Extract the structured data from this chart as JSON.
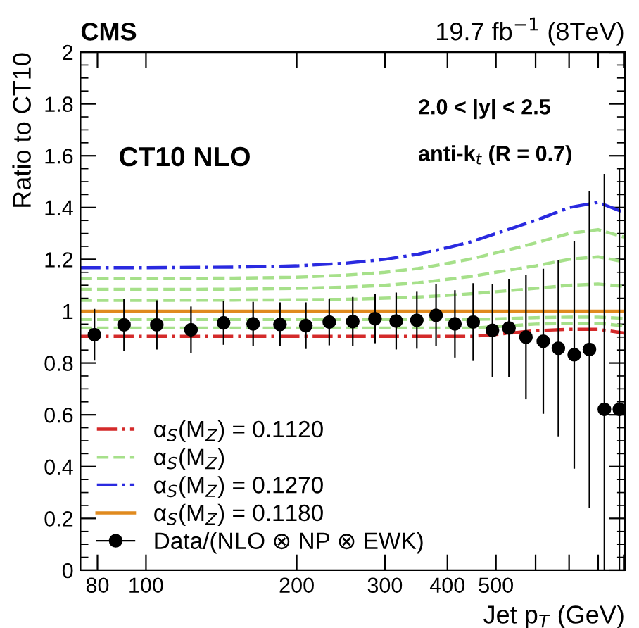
{
  "chart_data": {
    "type": "line",
    "title": "CMS",
    "subtitle": "19.7 fb$^{−1}$ (8TeV)",
    "xlabel": "Jet p$_{T}$ (GeV)",
    "ylabel": "Ratio to CT10",
    "annotations": [
      "CT10 NLO",
      "2.0 < |y| < 2.5",
      "anti-k$_{t}$ (R = 0.7)"
    ],
    "log": "x",
    "xlim": [
      74,
      905
    ],
    "ylim": [
      0,
      2
    ],
    "xticks": [
      80,
      100,
      200,
      300,
      400,
      500,
      {
        "value": 600,
        "label": null
      },
      {
        "value": 700,
        "label": null
      },
      {
        "value": 800,
        "label": null
      },
      {
        "value": 900,
        "label": null
      }
    ],
    "yticks": [
      0,
      0.2,
      0.4,
      0.6,
      0.8,
      1,
      1.2,
      1.4,
      1.6,
      1.8,
      2
    ],
    "grid": false,
    "legend": "bottom left",
    "series": [
      {
        "name": "α$_{S}$(M$_{Z}$) = 0.1120",
        "color": "#d42a2a",
        "line_style": "dashdot",
        "x": [
          74,
          100,
          150,
          200,
          250,
          300,
          350,
          400,
          450,
          500,
          600,
          700,
          800,
          905
        ],
        "values": [
          0.903,
          0.903,
          0.903,
          0.903,
          0.903,
          0.903,
          0.903,
          0.903,
          0.903,
          0.91,
          0.925,
          0.93,
          0.93,
          0.915
        ]
      },
      {
        "name": "α$_{S}$(M$_{Z}$)",
        "color": "#a6e08a",
        "line_style": "dashed",
        "x": [
          74,
          100,
          150,
          200,
          250,
          300,
          350,
          400,
          450,
          500,
          600,
          700,
          800,
          905
        ],
        "values": [
          1.042,
          1.042,
          1.043,
          1.044,
          1.046,
          1.05,
          1.055,
          1.061,
          1.068,
          1.075,
          1.088,
          1.1,
          1.105,
          1.095
        ]
      },
      {
        "color": "#a6e08a",
        "line_style": "dashed",
        "x": [
          74,
          100,
          150,
          200,
          250,
          300,
          350,
          400,
          450,
          500,
          600,
          700,
          800,
          905
        ],
        "values": [
          1.084,
          1.084,
          1.085,
          1.088,
          1.093,
          1.1,
          1.11,
          1.123,
          1.135,
          1.15,
          1.175,
          1.2,
          1.21,
          1.19
        ]
      },
      {
        "color": "#a6e08a",
        "line_style": "dashed",
        "x": [
          74,
          100,
          150,
          200,
          250,
          300,
          350,
          400,
          450,
          500,
          600,
          700,
          800,
          905
        ],
        "values": [
          1.126,
          1.126,
          1.128,
          1.131,
          1.139,
          1.15,
          1.165,
          1.184,
          1.203,
          1.225,
          1.263,
          1.3,
          1.315,
          1.285
        ]
      },
      {
        "color": "#a6e08a",
        "line_style": "dashed",
        "x": [
          74,
          100,
          150,
          200,
          250,
          300,
          350,
          400,
          450,
          500,
          600,
          700,
          800,
          905
        ],
        "values": [
          0.968,
          0.968,
          0.968,
          0.968,
          0.968,
          0.968,
          0.968,
          0.968,
          0.968,
          0.97,
          0.975,
          0.977,
          0.977,
          0.972
        ]
      },
      {
        "color": "#a6e08a",
        "line_style": "dashed",
        "x": [
          74,
          100,
          150,
          200,
          250,
          300,
          350,
          400,
          450,
          500,
          600,
          700,
          800,
          905
        ],
        "values": [
          0.935,
          0.935,
          0.935,
          0.935,
          0.935,
          0.935,
          0.935,
          0.935,
          0.935,
          0.94,
          0.95,
          0.953,
          0.953,
          0.943
        ]
      },
      {
        "name": "α$_{S}$(M$_{Z}$) = 0.1270",
        "color": "#2a2ae0",
        "line_style": "dashdot",
        "x": [
          74,
          100,
          150,
          200,
          250,
          300,
          350,
          400,
          450,
          500,
          600,
          700,
          800,
          905
        ],
        "values": [
          1.168,
          1.168,
          1.17,
          1.175,
          1.185,
          1.2,
          1.22,
          1.245,
          1.27,
          1.3,
          1.35,
          1.4,
          1.42,
          1.38
        ]
      },
      {
        "name": "α$_{S}$(M$_{Z}$) = 0.1180",
        "color": "#e08a1e",
        "line_style": "solid",
        "x": [
          74,
          905
        ],
        "values": [
          1,
          1
        ]
      },
      {
        "name": "Data/(NLO ⊗ NP ⊗ EWK)",
        "type": "scatter",
        "marker": "circle",
        "color": "#000000",
        "x": [
          78.9,
          90.4,
          105.1,
          123,
          142.9,
          163.7,
          185.2,
          208.6,
          232.3,
          258.8,
          286.7,
          316,
          347.5,
          379.6,
          414,
          450.3,
          492,
          530.9,
          574,
          621.7,
          666.3,
          716.8,
          768.6,
          823.3,
          882.1
        ],
        "values": [
          0.909,
          0.947,
          0.947,
          0.928,
          0.955,
          0.951,
          0.949,
          0.944,
          0.958,
          0.96,
          0.971,
          0.962,
          0.965,
          0.984,
          0.951,
          0.958,
          0.926,
          0.935,
          0.9,
          0.884,
          0.857,
          0.832,
          0.852,
          0.621,
          0.621
        ],
        "errors": [
          0.1,
          0.1,
          0.095,
          0.09,
          0.085,
          0.085,
          0.085,
          0.09,
          0.09,
          0.095,
          0.095,
          0.11,
          0.11,
          0.12,
          0.13,
          0.15,
          0.18,
          0.19,
          0.24,
          0.28,
          0.34,
          0.44,
          0.61,
          [
            0,
            1.53
          ],
          [
            0,
            1.55
          ]
        ]
      }
    ]
  }
}
